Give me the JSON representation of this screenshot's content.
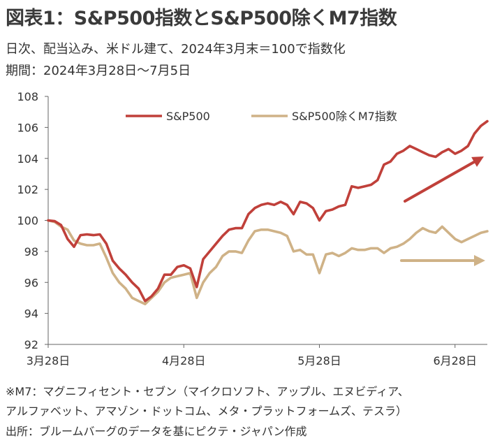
{
  "header": {
    "title": "図表1：S&P500指数とS&P500除くM7指数",
    "subtitle_1": "日次、配当込み、米ドル建て、2024年3月末＝100で指数化",
    "subtitle_2": "期間：2024年3月28日～7月5日"
  },
  "footer": {
    "note_1": "※M7：マグニフィセント・セブン（マイクロソフト、アップル、エヌビディア、",
    "note_2": "アルファベット、アマゾン・ドットコム、メタ・プラットフォームズ、テスラ）",
    "source": "出所：ブルームバーグのデータを基にピクテ・ジャパン作成"
  },
  "colors": {
    "sp500": "#c0403a",
    "ex_m7": "#cfb287",
    "axis": "#666666"
  },
  "chart_data": {
    "type": "line",
    "ylim": [
      92,
      108
    ],
    "yticks": [
      92,
      94,
      96,
      98,
      100,
      102,
      104,
      106,
      108
    ],
    "categories": [
      "3月28日",
      "4月28日",
      "5月28日",
      "6月28日"
    ],
    "x": [
      0,
      1,
      2,
      3,
      4,
      5,
      6,
      7,
      8,
      9,
      10,
      11,
      12,
      13,
      14,
      15,
      16,
      17,
      18,
      19,
      20,
      21,
      22,
      23,
      24,
      25,
      26,
      27,
      28,
      29,
      30,
      31,
      32,
      33,
      34,
      35,
      36,
      37,
      38,
      39,
      40,
      41,
      42,
      43,
      44,
      45,
      46,
      47,
      48,
      49,
      50,
      51,
      52,
      53,
      54,
      55,
      56,
      57,
      58,
      59,
      60,
      61,
      62,
      63,
      64,
      65,
      66,
      67,
      68
    ],
    "category_positions": [
      0,
      21,
      42,
      63
    ],
    "series": [
      {
        "name": "S&P500",
        "values": [
          100,
          99.95,
          99.7,
          98.8,
          98.3,
          99.05,
          99.1,
          99.05,
          99.1,
          98.5,
          97.4,
          96.9,
          96.5,
          96.0,
          95.6,
          94.8,
          95.1,
          95.6,
          96.5,
          96.5,
          97.0,
          97.1,
          96.9,
          95.7,
          97.5,
          98.0,
          98.5,
          99.0,
          99.4,
          99.5,
          99.5,
          100.4,
          100.8,
          101.0,
          101.1,
          101.0,
          101.2,
          101.0,
          100.4,
          101.2,
          101.1,
          100.8,
          100.0,
          100.6,
          100.7,
          100.9,
          101.0,
          102.2,
          102.1,
          102.2,
          102.3,
          102.6,
          103.6,
          103.8,
          104.3,
          104.5,
          104.8,
          104.6,
          104.4,
          104.2,
          104.1,
          104.4,
          104.6,
          104.3,
          104.5,
          104.8,
          105.6,
          106.1,
          106.4
        ]
      },
      {
        "name": "S&P500除くM7指数",
        "values": [
          100,
          99.9,
          99.6,
          99.4,
          98.7,
          98.5,
          98.4,
          98.4,
          98.5,
          97.6,
          96.6,
          96.0,
          95.6,
          95.0,
          94.8,
          94.6,
          95.0,
          95.4,
          96.0,
          96.3,
          96.4,
          96.5,
          96.6,
          95.0,
          96.0,
          96.6,
          97.0,
          97.7,
          98.0,
          98.0,
          97.9,
          98.7,
          99.3,
          99.4,
          99.4,
          99.3,
          99.2,
          99.0,
          98.0,
          98.1,
          97.8,
          97.8,
          96.6,
          97.8,
          97.9,
          97.7,
          97.9,
          98.2,
          98.1,
          98.1,
          98.2,
          98.2,
          97.9,
          98.2,
          98.3,
          98.5,
          98.8,
          99.2,
          99.5,
          99.3,
          99.2,
          99.6,
          99.2,
          98.8,
          98.6,
          98.8,
          99.0,
          99.2,
          99.3
        ]
      }
    ]
  }
}
